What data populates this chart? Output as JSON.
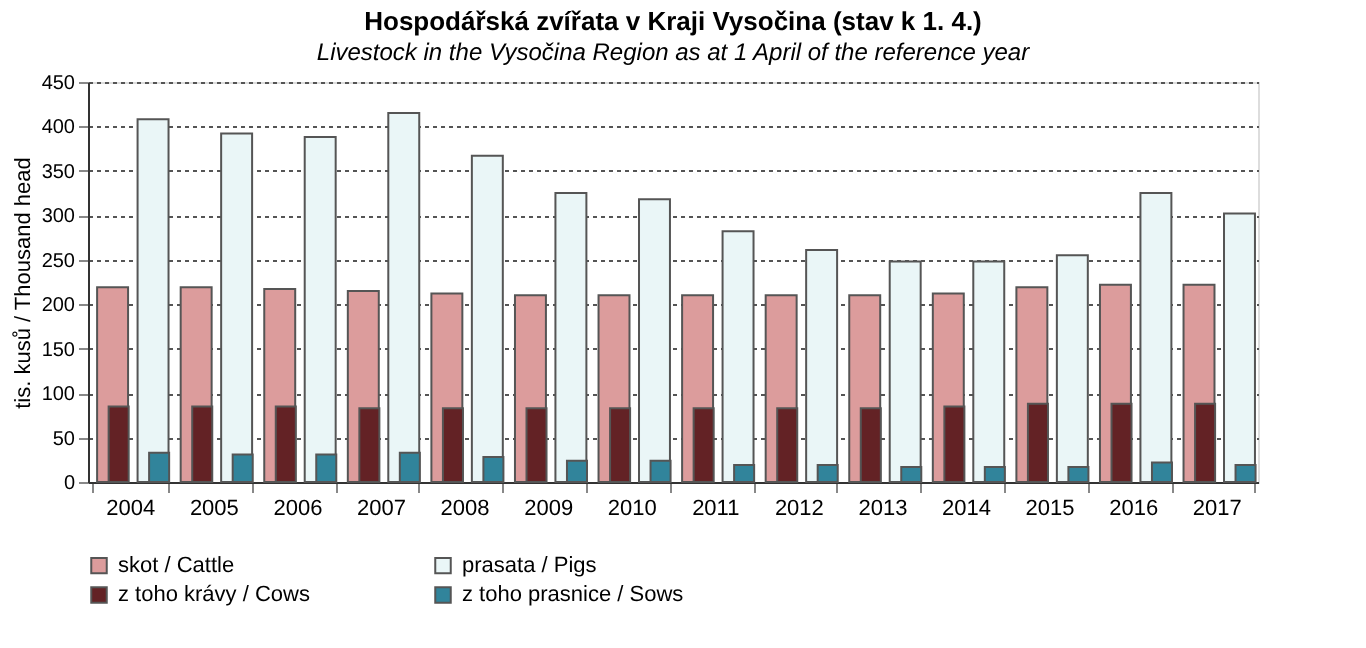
{
  "chart_data": {
    "type": "bar",
    "title": "Hospodářská zvířata v Kraji Vysočina (stav k 1. 4.)",
    "subtitle": "Livestock in the Vysočina Region as at 1 April of the reference year",
    "ylabel": "tis. kusů / Thousand head",
    "categories": [
      "2004",
      "2005",
      "2006",
      "2007",
      "2008",
      "2009",
      "2010",
      "2011",
      "2012",
      "2013",
      "2014",
      "2015",
      "2016",
      "2017"
    ],
    "series": [
      {
        "name": "skot / Cattle",
        "color": "#dc9c9c",
        "values": [
          219,
          219,
          217,
          215,
          212,
          210,
          210,
          210,
          210,
          210,
          212,
          219,
          222,
          222
        ]
      },
      {
        "name": "prasata / Pigs",
        "color": "#eaf6f7",
        "values": [
          408,
          392,
          388,
          415,
          367,
          325,
          318,
          282,
          261,
          248,
          248,
          255,
          325,
          302
        ]
      },
      {
        "name": "z toho krávy / Cows",
        "color": "#632225",
        "values": [
          85,
          85,
          85,
          83,
          83,
          83,
          83,
          83,
          83,
          83,
          85,
          88,
          88,
          88
        ]
      },
      {
        "name": "z toho prasnice / Sows",
        "color": "#31849b",
        "values": [
          33,
          31,
          31,
          33,
          28,
          24,
          24,
          19,
          19,
          17,
          17,
          17,
          22,
          19
        ]
      }
    ],
    "ylim": [
      0,
      450
    ],
    "yticks": [
      0,
      50,
      100,
      150,
      200,
      250,
      300,
      350,
      400,
      450
    ],
    "grid": "y",
    "legend": "bottom"
  }
}
